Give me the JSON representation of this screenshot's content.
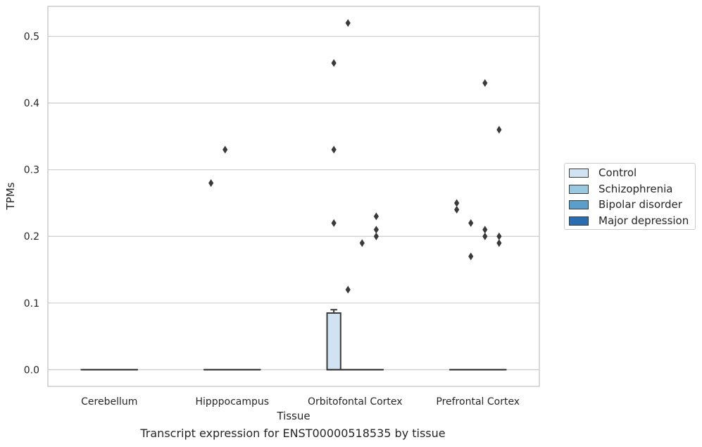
{
  "chart_data": {
    "type": "box",
    "title": "Transcript expression for ENST00000518535 by tissue",
    "xlabel": "Tissue",
    "ylabel": "TPMs",
    "ylim": [
      -0.025,
      0.545
    ],
    "yticks": [
      0.0,
      0.1,
      0.2,
      0.3,
      0.4,
      0.5
    ],
    "ytick_labels": [
      "0.0",
      "0.1",
      "0.2",
      "0.3",
      "0.4",
      "0.5"
    ],
    "grid": true,
    "legend_position": "outside-right",
    "categories": [
      "Cerebellum",
      "Hipppocampus",
      "Orbitofontal Cortex",
      "Prefrontal Cortex"
    ],
    "series": [
      {
        "name": "Control",
        "color": "#d1e2f2",
        "boxes": [
          {
            "category": "Cerebellum",
            "q1": 0,
            "median": 0,
            "q3": 0,
            "whisker_low": 0,
            "whisker_high": 0,
            "outliers": []
          },
          {
            "category": "Hipppocampus",
            "q1": 0,
            "median": 0,
            "q3": 0,
            "whisker_low": 0,
            "whisker_high": 0,
            "outliers": [
              0.28
            ]
          },
          {
            "category": "Orbitofontal Cortex",
            "q1": 0,
            "median": 0,
            "q3": 0.085,
            "whisker_low": 0,
            "whisker_high": 0.09,
            "outliers": [
              0.46,
              0.33,
              0.22
            ]
          },
          {
            "category": "Prefrontal Cortex",
            "q1": 0,
            "median": 0,
            "q3": 0,
            "whisker_low": 0,
            "whisker_high": 0,
            "outliers": [
              0.25,
              0.24
            ]
          }
        ]
      },
      {
        "name": "Schizophrenia",
        "color": "#9ac8e0",
        "boxes": [
          {
            "category": "Cerebellum",
            "q1": 0,
            "median": 0,
            "q3": 0,
            "whisker_low": 0,
            "whisker_high": 0,
            "outliers": []
          },
          {
            "category": "Hipppocampus",
            "q1": 0,
            "median": 0,
            "q3": 0,
            "whisker_low": 0,
            "whisker_high": 0,
            "outliers": [
              0.33
            ]
          },
          {
            "category": "Orbitofontal Cortex",
            "q1": 0,
            "median": 0,
            "q3": 0,
            "whisker_low": 0,
            "whisker_high": 0,
            "outliers": [
              0.52,
              0.12
            ]
          },
          {
            "category": "Prefrontal Cortex",
            "q1": 0,
            "median": 0,
            "q3": 0,
            "whisker_low": 0,
            "whisker_high": 0,
            "outliers": [
              0.22,
              0.17
            ]
          }
        ]
      },
      {
        "name": "Bipolar disorder",
        "color": "#5a9fcb",
        "boxes": [
          {
            "category": "Cerebellum",
            "q1": 0,
            "median": 0,
            "q3": 0,
            "whisker_low": 0,
            "whisker_high": 0,
            "outliers": []
          },
          {
            "category": "Hipppocampus",
            "q1": 0,
            "median": 0,
            "q3": 0,
            "whisker_low": 0,
            "whisker_high": 0,
            "outliers": []
          },
          {
            "category": "Orbitofontal Cortex",
            "q1": 0,
            "median": 0,
            "q3": 0,
            "whisker_low": 0,
            "whisker_high": 0,
            "outliers": [
              0.19
            ]
          },
          {
            "category": "Prefrontal Cortex",
            "q1": 0,
            "median": 0,
            "q3": 0,
            "whisker_low": 0,
            "whisker_high": 0,
            "outliers": [
              0.43,
              0.21,
              0.2
            ]
          }
        ]
      },
      {
        "name": "Major depression",
        "color": "#2a6cb0",
        "boxes": [
          {
            "category": "Cerebellum",
            "q1": 0,
            "median": 0,
            "q3": 0,
            "whisker_low": 0,
            "whisker_high": 0,
            "outliers": []
          },
          {
            "category": "Hipppocampus",
            "q1": 0,
            "median": 0,
            "q3": 0,
            "whisker_low": 0,
            "whisker_high": 0,
            "outliers": []
          },
          {
            "category": "Orbitofontal Cortex",
            "q1": 0,
            "median": 0,
            "q3": 0,
            "whisker_low": 0,
            "whisker_high": 0,
            "outliers": [
              0.23,
              0.21,
              0.2
            ]
          },
          {
            "category": "Prefrontal Cortex",
            "q1": 0,
            "median": 0,
            "q3": 0,
            "whisker_low": 0,
            "whisker_high": 0,
            "outliers": [
              0.36,
              0.2,
              0.19
            ]
          }
        ]
      }
    ]
  }
}
